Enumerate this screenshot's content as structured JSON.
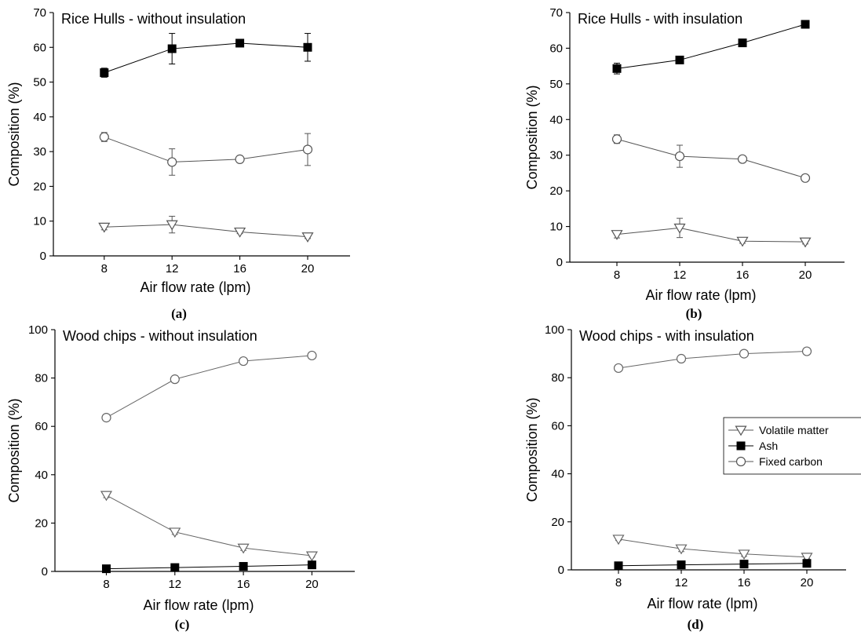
{
  "chart_data": [
    {
      "type": "line",
      "panel_label": "(a)",
      "title": "Rice Hulls - without insulation",
      "xlabel": "Air flow rate (lpm)",
      "ylabel": "Composition (%)",
      "x": [
        8,
        12,
        16,
        20
      ],
      "xticks": [
        8,
        12,
        16,
        20
      ],
      "xlim": [
        5,
        22.5
      ],
      "ylim": [
        0,
        70
      ],
      "yticks": [
        0,
        10,
        20,
        30,
        40,
        50,
        60,
        70
      ],
      "series": [
        {
          "key": "ash",
          "marker": "filled-square",
          "color": "#000000",
          "values": [
            52.7,
            59.6,
            61.2,
            60.0
          ],
          "errors": [
            1.3,
            4.4,
            0.8,
            4.0
          ]
        },
        {
          "key": "fixed_carbon",
          "marker": "open-circle",
          "color": "#555555",
          "values": [
            34.2,
            27.0,
            27.8,
            30.6
          ],
          "errors": [
            1.3,
            3.8,
            0.6,
            4.6
          ]
        },
        {
          "key": "volatile_matter",
          "marker": "open-triangle-down",
          "color": "#555555",
          "values": [
            8.3,
            9.0,
            6.9,
            5.5
          ],
          "errors": [
            0.8,
            2.4,
            0.5,
            0.5
          ]
        }
      ]
    },
    {
      "type": "line",
      "panel_label": "(b)",
      "title": "Rice Hulls - with insulation",
      "xlabel": "Air flow rate (lpm)",
      "ylabel": "Composition (%)",
      "x": [
        8,
        12,
        16,
        20
      ],
      "xticks": [
        8,
        12,
        16,
        20
      ],
      "xlim": [
        5,
        22.5
      ],
      "ylim": [
        0,
        70
      ],
      "yticks": [
        0,
        10,
        20,
        30,
        40,
        50,
        60,
        70
      ],
      "series": [
        {
          "key": "ash",
          "marker": "filled-square",
          "color": "#000000",
          "values": [
            54.3,
            56.7,
            61.5,
            66.7
          ],
          "errors": [
            1.5,
            0.5,
            0.4,
            0.5
          ]
        },
        {
          "key": "fixed_carbon",
          "marker": "open-circle",
          "color": "#555555",
          "values": [
            34.5,
            29.7,
            28.9,
            23.6
          ],
          "errors": [
            1.2,
            3.1,
            0.6,
            0.8
          ]
        },
        {
          "key": "volatile_matter",
          "marker": "open-triangle-down",
          "color": "#555555",
          "values": [
            7.8,
            9.6,
            5.9,
            5.7
          ],
          "errors": [
            1.0,
            2.7,
            0.6,
            0.6
          ]
        }
      ]
    },
    {
      "type": "line",
      "panel_label": "(c)",
      "title": "Wood chips - without insulation",
      "xlabel": "Air flow rate (lpm)",
      "ylabel": "Composition (%)",
      "x": [
        8,
        12,
        16,
        20
      ],
      "xticks": [
        8,
        12,
        16,
        20
      ],
      "xlim": [
        5,
        22.5
      ],
      "ylim": [
        0,
        100
      ],
      "yticks": [
        0,
        20,
        40,
        60,
        80,
        100
      ],
      "series": [
        {
          "key": "fixed_carbon",
          "marker": "open-circle",
          "color": "#666666",
          "values": [
            63.6,
            79.5,
            87.0,
            89.3
          ],
          "errors": [
            0.8,
            1.2,
            0.8,
            0.6
          ]
        },
        {
          "key": "volatile_matter",
          "marker": "open-triangle-down",
          "color": "#666666",
          "values": [
            31.5,
            16.3,
            9.7,
            6.5
          ],
          "errors": [
            1.0,
            1.0,
            1.0,
            0.6
          ]
        },
        {
          "key": "ash",
          "marker": "filled-square",
          "color": "#000000",
          "values": [
            1.1,
            1.6,
            2.1,
            2.7
          ],
          "errors": [
            0.2,
            0.2,
            0.2,
            0.2
          ]
        }
      ]
    },
    {
      "type": "line",
      "panel_label": "(d)",
      "title": "Wood chips - with insulation",
      "xlabel": "Air flow rate (lpm)",
      "ylabel": "Composition (%)",
      "x": [
        8,
        12,
        16,
        20
      ],
      "xticks": [
        8,
        12,
        16,
        20
      ],
      "xlim": [
        5,
        22.5
      ],
      "ylim": [
        0,
        100
      ],
      "yticks": [
        0,
        20,
        40,
        60,
        80,
        100
      ],
      "legend": {
        "placement": "center-right",
        "entries": [
          {
            "key": "volatile_matter",
            "label": "Volatile matter",
            "marker": "open-triangle-down",
            "color": "#555555"
          },
          {
            "key": "ash",
            "label": "Ash",
            "marker": "filled-square",
            "color": "#000000"
          },
          {
            "key": "fixed_carbon",
            "label": "Fixed carbon",
            "marker": "open-circle",
            "color": "#555555"
          }
        ]
      },
      "series": [
        {
          "key": "fixed_carbon",
          "marker": "open-circle",
          "color": "#666666",
          "values": [
            84.0,
            87.9,
            90.0,
            91.0
          ],
          "errors": [
            0.6,
            0.6,
            0.8,
            0.6
          ]
        },
        {
          "key": "volatile_matter",
          "marker": "open-triangle-down",
          "color": "#666666",
          "values": [
            12.8,
            8.8,
            6.6,
            5.3
          ],
          "errors": [
            0.6,
            1.2,
            1.0,
            0.6
          ]
        },
        {
          "key": "ash",
          "marker": "filled-square",
          "color": "#000000",
          "values": [
            1.7,
            2.1,
            2.4,
            2.7
          ],
          "errors": [
            0.2,
            0.2,
            0.2,
            0.2
          ]
        }
      ]
    }
  ]
}
